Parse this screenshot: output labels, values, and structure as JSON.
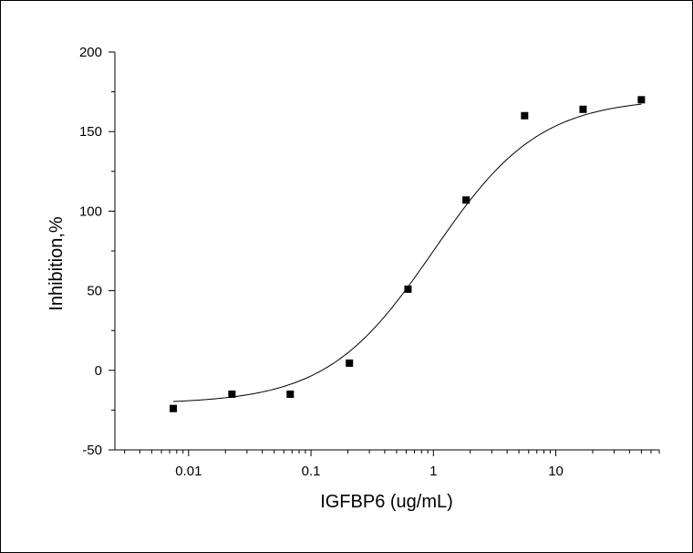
{
  "chart_data": {
    "type": "scatter",
    "title": "",
    "xlabel": "IGFBP6 (ug/mL)",
    "ylabel": "Inhibition,%",
    "x_scale": "log",
    "xlim": [
      0.0025,
      70
    ],
    "ylim": [
      -50,
      200
    ],
    "x_ticks": [
      {
        "value": 0.01,
        "label": "0.01"
      },
      {
        "value": 0.1,
        "label": "0.1"
      },
      {
        "value": 1,
        "label": "1"
      },
      {
        "value": 10,
        "label": "10"
      }
    ],
    "y_ticks": [
      {
        "value": -50,
        "label": "-50"
      },
      {
        "value": 0,
        "label": "0"
      },
      {
        "value": 50,
        "label": "50"
      },
      {
        "value": 100,
        "label": "100"
      },
      {
        "value": 150,
        "label": "150"
      },
      {
        "value": 200,
        "label": "200"
      }
    ],
    "grid": false,
    "legend": "none",
    "series": [
      {
        "marker": "square",
        "color": "#000000",
        "points": [
          {
            "x": 0.0075,
            "y": -24
          },
          {
            "x": 0.0226,
            "y": -15
          },
          {
            "x": 0.0677,
            "y": -15
          },
          {
            "x": 0.206,
            "y": 4.5
          },
          {
            "x": 0.62,
            "y": 51
          },
          {
            "x": 1.85,
            "y": 107
          },
          {
            "x": 5.56,
            "y": 160
          },
          {
            "x": 16.7,
            "y": 164
          },
          {
            "x": 50,
            "y": 170
          }
        ]
      }
    ],
    "fit_curve": {
      "type": "four-parameter-logistic",
      "color": "#000000",
      "bottom": -21,
      "top": 171,
      "ec50": 1.0,
      "hill": 1.0,
      "x_range": [
        0.0075,
        50
      ]
    }
  }
}
